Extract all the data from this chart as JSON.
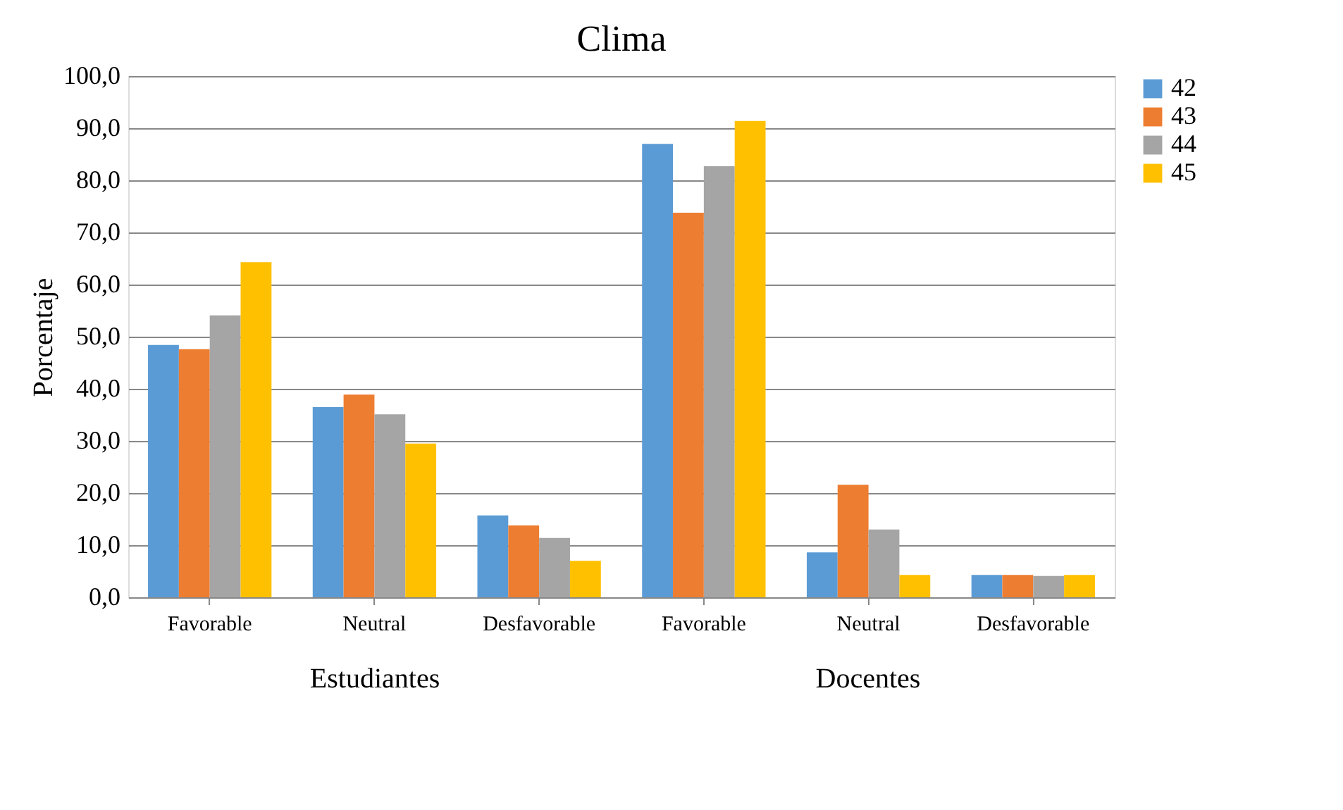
{
  "chart_data": {
    "type": "bar",
    "title": "Clima",
    "ylabel": "Porcentaje",
    "categories": [
      "Favorable",
      "Neutral",
      "Desfavorable",
      "Favorable",
      "Neutral",
      "Desfavorable"
    ],
    "annotations": [
      "Estudiantes",
      "Docentes"
    ],
    "series": [
      {
        "name": "42",
        "color": "#5b9bd5",
        "values": [
          48.4,
          36.5,
          15.7,
          87.0,
          8.6,
          4.3
        ]
      },
      {
        "name": "43",
        "color": "#ed7d31",
        "values": [
          47.6,
          38.9,
          13.8,
          73.8,
          21.6,
          4.3
        ]
      },
      {
        "name": "44",
        "color": "#a5a5a5",
        "values": [
          54.1,
          35.1,
          11.4,
          82.7,
          13.0,
          4.1
        ]
      },
      {
        "name": "45",
        "color": "#ffc000",
        "values": [
          64.3,
          29.5,
          7.0,
          91.4,
          4.3,
          4.3
        ]
      }
    ],
    "ylim": [
      0,
      100
    ],
    "yticks": [
      {
        "value": 0,
        "label": "0,0"
      },
      {
        "value": 10,
        "label": "10,0"
      },
      {
        "value": 20,
        "label": "20,0"
      },
      {
        "value": 30,
        "label": "30,0"
      },
      {
        "value": 40,
        "label": "40,0"
      },
      {
        "value": 50,
        "label": "50,0"
      },
      {
        "value": 60,
        "label": "60,0"
      },
      {
        "value": 70,
        "label": "70,0"
      },
      {
        "value": 80,
        "label": "80,0"
      },
      {
        "value": 90,
        "label": "90,0"
      },
      {
        "value": 100,
        "label": "100,0"
      }
    ],
    "grid": "y",
    "legend": "right"
  }
}
